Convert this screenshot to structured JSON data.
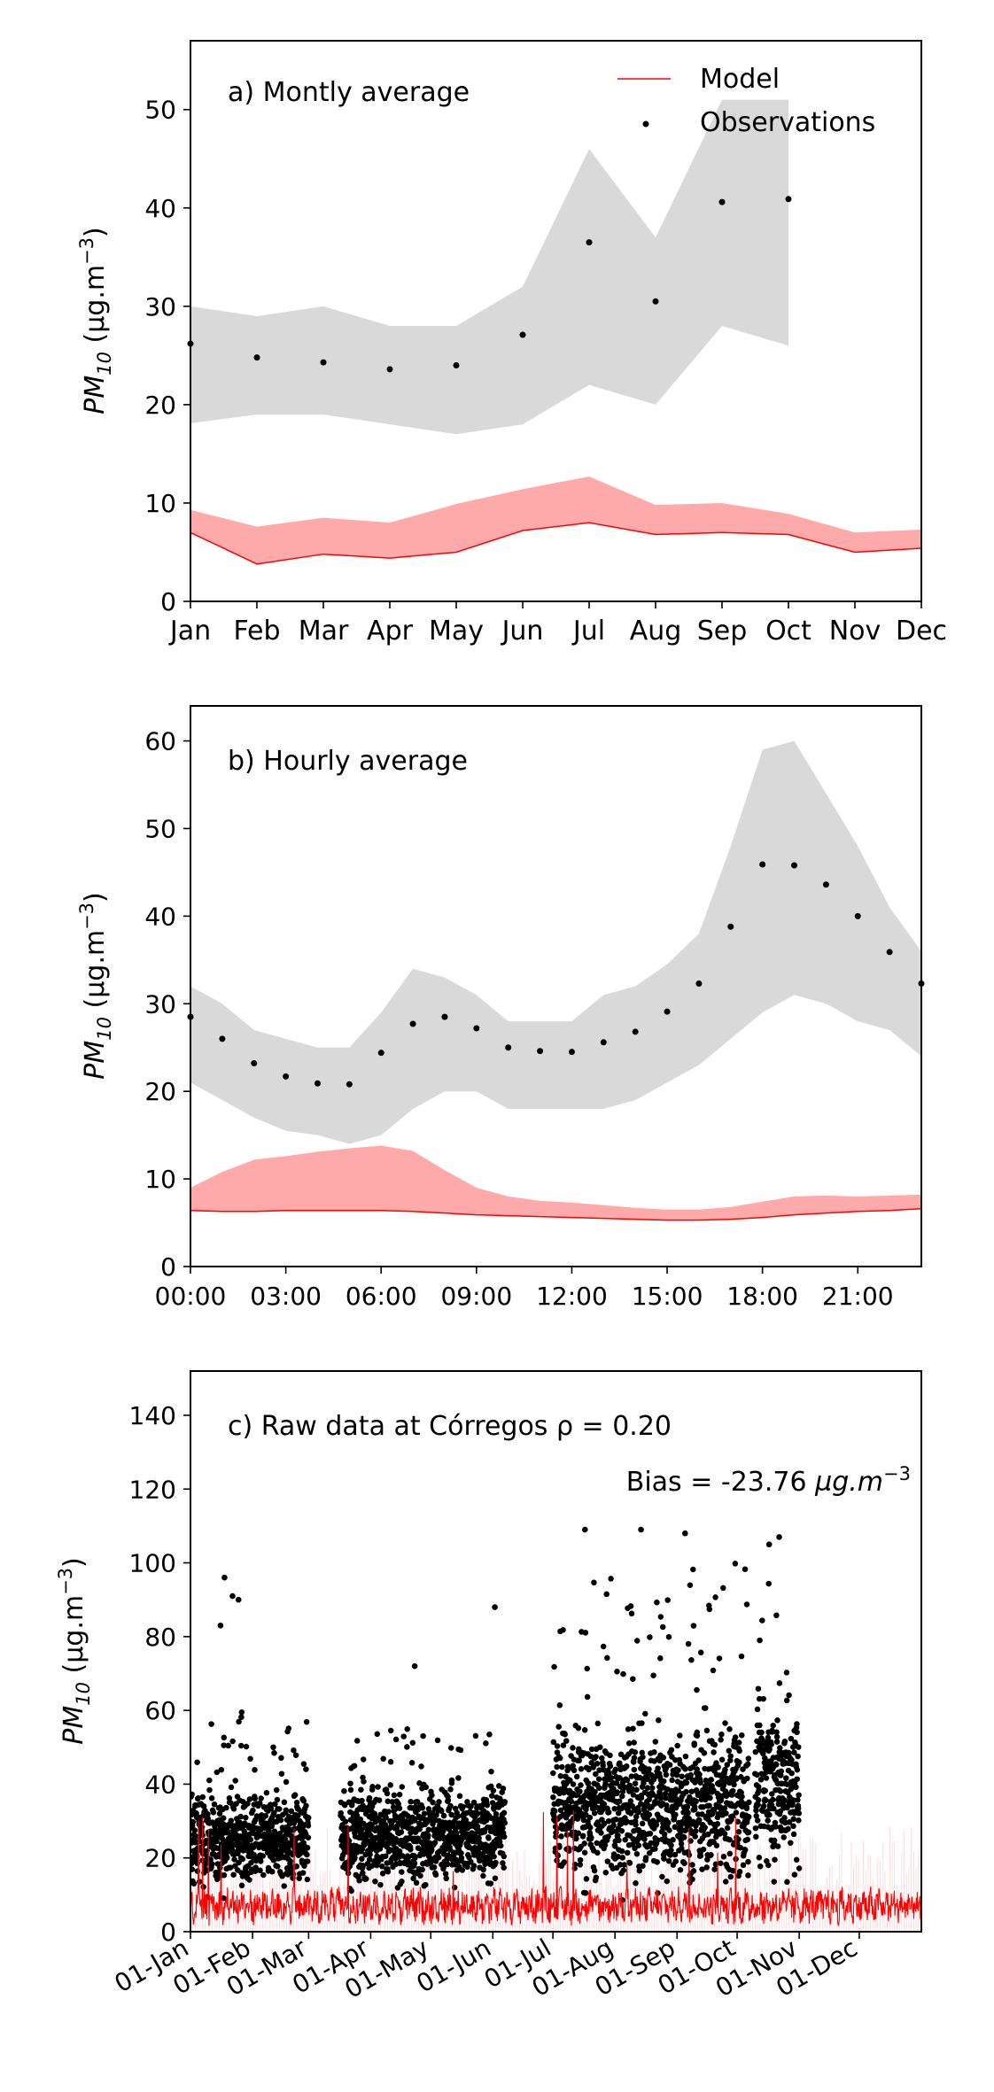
{
  "chart_data": [
    {
      "type": "line",
      "panel_label": "a) Montly average",
      "ylabel": "PM10 (µg.m−3)",
      "ylabel_main": "PM",
      "ylabel_sub": "10",
      "ylabel_unit": " (µg.m",
      "ylabel_exp": "−3",
      "ylabel_close": ")",
      "ylim": [
        0,
        57
      ],
      "yticks": [
        0,
        10,
        20,
        30,
        40,
        50
      ],
      "categories": [
        "Jan",
        "Feb",
        "Mar",
        "Apr",
        "May",
        "Jun",
        "Jul",
        "Aug",
        "Sep",
        "Oct",
        "Nov",
        "Dec"
      ],
      "legend": {
        "placement": "top-right",
        "model_label": "Model",
        "obs_label": "Observations"
      },
      "model_line": [
        7.0,
        3.8,
        4.8,
        4.4,
        5.0,
        7.2,
        8.0,
        6.8,
        7.0,
        6.8,
        5.0,
        5.4
      ],
      "model_band_low": [
        7.0,
        3.8,
        4.8,
        4.4,
        5.0,
        7.2,
        8.0,
        6.8,
        7.0,
        6.8,
        5.0,
        5.4
      ],
      "model_band_high": [
        9.3,
        7.6,
        8.5,
        8.0,
        9.9,
        11.4,
        12.7,
        9.8,
        10.0,
        8.9,
        7.0,
        7.3
      ],
      "obs_points": [
        26.2,
        24.8,
        24.3,
        23.6,
        24.0,
        27.1,
        36.5,
        30.5,
        40.6,
        40.9,
        null,
        null
      ],
      "obs_band_low": [
        18.1,
        19.0,
        19.0,
        18.0,
        17.0,
        18.0,
        22.0,
        20.0,
        28.0,
        26.0,
        null,
        null
      ],
      "obs_band_high": [
        30.0,
        29.0,
        30.0,
        28.0,
        28.0,
        32.0,
        46.0,
        37.0,
        51.0,
        51.0,
        null,
        null
      ],
      "colors": {
        "model": "#ff0000",
        "model_band": "#ffaaaa",
        "obs": "#000000",
        "obs_band": "#d9d9d9"
      }
    },
    {
      "type": "line",
      "panel_label": "b) Hourly average",
      "ylabel_main": "PM",
      "ylabel_sub": "10",
      "ylabel_unit": " (µg.m",
      "ylabel_exp": "−3",
      "ylabel_close": ")",
      "ylim": [
        0,
        64
      ],
      "yticks": [
        0,
        10,
        20,
        30,
        40,
        50,
        60
      ],
      "xlim": [
        0,
        23
      ],
      "xticks": [
        "00:00",
        "03:00",
        "06:00",
        "09:00",
        "12:00",
        "15:00",
        "18:00",
        "21:00"
      ],
      "xtick_hours": [
        0,
        3,
        6,
        9,
        12,
        15,
        18,
        21
      ],
      "hours": [
        0,
        1,
        2,
        3,
        4,
        5,
        6,
        7,
        8,
        9,
        10,
        11,
        12,
        13,
        14,
        15,
        16,
        17,
        18,
        19,
        20,
        21,
        22,
        23
      ],
      "model_line": [
        6.4,
        6.3,
        6.3,
        6.4,
        6.4,
        6.4,
        6.4,
        6.3,
        6.1,
        5.9,
        5.8,
        5.7,
        5.6,
        5.5,
        5.4,
        5.3,
        5.3,
        5.4,
        5.6,
        5.9,
        6.1,
        6.3,
        6.4,
        6.6
      ],
      "model_band_high": [
        9.0,
        10.8,
        12.2,
        12.6,
        13.1,
        13.5,
        13.8,
        13.2,
        11.0,
        9.0,
        8.0,
        7.5,
        7.3,
        7.0,
        6.7,
        6.5,
        6.5,
        6.8,
        7.4,
        8.0,
        8.1,
        8.0,
        8.1,
        8.2
      ],
      "obs_points": [
        28.5,
        26.0,
        23.2,
        21.7,
        20.9,
        20.8,
        24.4,
        27.7,
        28.5,
        27.2,
        25.0,
        24.6,
        24.5,
        25.6,
        26.8,
        29.1,
        32.3,
        38.8,
        45.9,
        45.8,
        43.6,
        40.0,
        35.9,
        32.3
      ],
      "obs_band_low": [
        21.0,
        19.0,
        17.0,
        15.5,
        15.0,
        14.0,
        15.0,
        18.0,
        20.0,
        20.0,
        18.0,
        18.0,
        18.0,
        18.0,
        19.0,
        21.0,
        23.0,
        26.0,
        29.0,
        31.0,
        30.0,
        28.0,
        27.0,
        24.0
      ],
      "obs_band_high": [
        32.0,
        30.0,
        27.0,
        26.0,
        25.0,
        25.0,
        29.0,
        34.0,
        33.0,
        31.0,
        28.0,
        28.0,
        28.0,
        31.0,
        32.0,
        34.5,
        38.0,
        48.0,
        59.0,
        60.0,
        54.0,
        48.0,
        41.0,
        36.0
      ],
      "colors": {
        "model": "#ff0000",
        "model_band": "#ffaaaa",
        "obs": "#000000",
        "obs_band": "#d9d9d9"
      }
    },
    {
      "type": "scatter",
      "panel_label": "c) Raw data at Córregos ρ = 0.20",
      "bias_prefix": "Bias = -23.76 ",
      "bias_unit": "µg.m",
      "bias_exp": "−3",
      "ylabel_main": "PM",
      "ylabel_sub": "10",
      "ylabel_unit": " (µg.m",
      "ylabel_exp": "−3",
      "ylabel_close": ")",
      "ylim": [
        0,
        152
      ],
      "yticks": [
        0,
        20,
        40,
        60,
        80,
        100,
        120,
        140
      ],
      "xlim_day": [
        1,
        366
      ],
      "xticks": [
        "01-Jan",
        "01-Feb",
        "01-Mar",
        "01-Apr",
        "01-May",
        "01-Jun",
        "01-Jul",
        "01-Aug",
        "01-Sep",
        "01-Oct",
        "01-Nov",
        "01-Dec"
      ],
      "xtick_days": [
        1,
        32,
        60,
        91,
        121,
        152,
        182,
        213,
        244,
        274,
        305,
        335
      ],
      "obs_segments": [
        {
          "start_day": 1,
          "end_day": 60,
          "base": 25,
          "spread": 9,
          "peak": 60
        },
        {
          "start_day": 76,
          "end_day": 158,
          "base": 26,
          "spread": 9,
          "peak": 55
        },
        {
          "start_day": 182,
          "end_day": 280,
          "base": 34,
          "spread": 14,
          "peak": 100
        },
        {
          "start_day": 283,
          "end_day": 305,
          "base": 40,
          "spread": 16,
          "peak": 105
        }
      ],
      "obs_outliers": [
        {
          "day": 18,
          "value": 96
        },
        {
          "day": 22,
          "value": 91
        },
        {
          "day": 25,
          "value": 90
        },
        {
          "day": 16,
          "value": 83
        },
        {
          "day": 113,
          "value": 72
        },
        {
          "day": 153,
          "value": 88
        },
        {
          "day": 198,
          "value": 109
        },
        {
          "day": 226,
          "value": 109
        },
        {
          "day": 248,
          "value": 108
        },
        {
          "day": 290,
          "value": 105
        },
        {
          "day": 295,
          "value": 107
        }
      ],
      "model_typical": 7,
      "colors": {
        "model": "#ff0000",
        "model_band": "#ffaaaa",
        "obs": "#000000"
      }
    }
  ]
}
